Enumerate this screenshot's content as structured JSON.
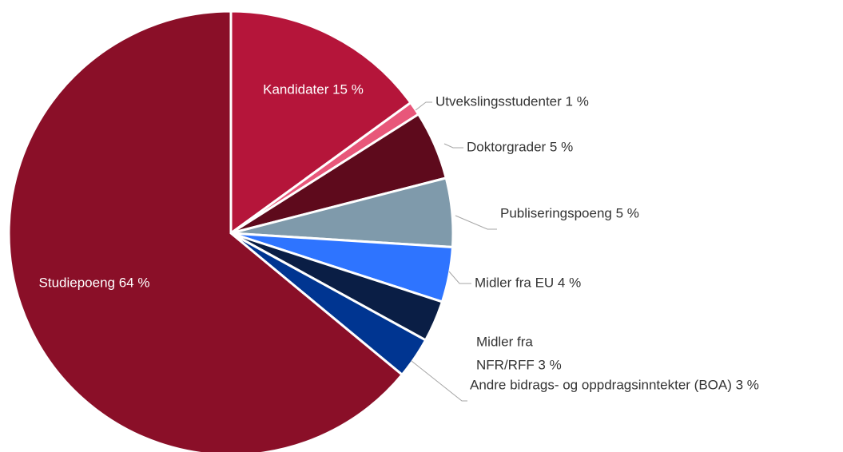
{
  "chart_data": {
    "type": "pie",
    "categories": [
      "Kandidater",
      "Utvekslingsstudenter",
      "Doktorgrader",
      "Publiseringspoeng",
      "Midler fra EU",
      "Midler fra NFR/RFF",
      "Andre bidrags- og oppdragsinntekter (BOA)",
      "Studiepoeng"
    ],
    "values": [
      15,
      1,
      5,
      5,
      4,
      3,
      3,
      64
    ],
    "value_labels": [
      "Kandidater 15 %",
      "Utvekslingsstudenter 1 %",
      "Doktorgrader 5 %",
      "Publiseringspoeng 5 %",
      "Midler fra EU 4 %",
      [
        "Midler fra",
        "NFR/RFF 3 %"
      ],
      "Andre bidrags- og oppdragsinntekter (BOA) 3 %",
      "Studiepoeng 64 %"
    ],
    "colors": [
      "#b5153a",
      "#e8577a",
      "#5e0a1c",
      "#7f9aab",
      "#2e74ff",
      "#0a1e45",
      "#003591",
      "#8a0f28"
    ]
  }
}
